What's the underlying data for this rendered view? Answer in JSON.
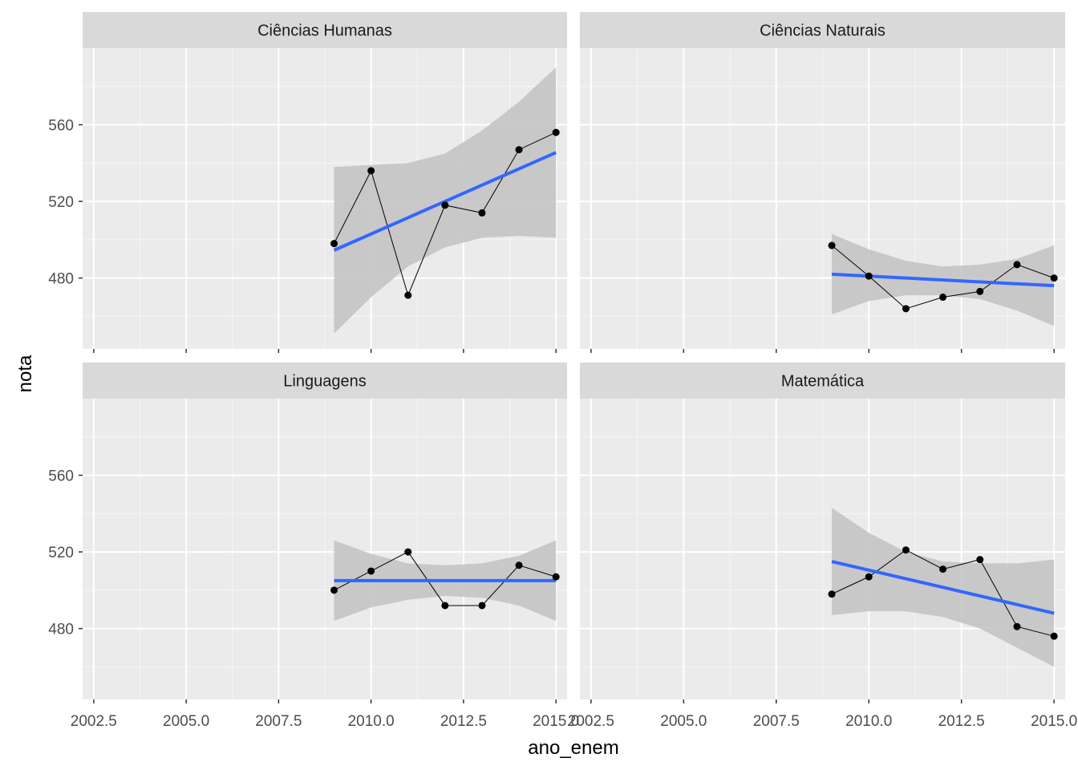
{
  "chart_data": {
    "type": "line",
    "layout": "facet_wrap 2x2",
    "xlabel": "ano_enem",
    "ylabel": "nota",
    "xlim": [
      2002.2,
      2015.3
    ],
    "ylim": [
      443,
      600
    ],
    "x_ticks": [
      2002.5,
      2005.0,
      2007.5,
      2010.0,
      2012.5,
      2015.0
    ],
    "x_tick_labels": [
      "2002.5",
      "2005.0",
      "2007.5",
      "2010.0",
      "2012.5",
      "2015.0"
    ],
    "y_ticks": [
      480,
      520,
      560
    ],
    "y_tick_labels": [
      "480",
      "520",
      "560"
    ],
    "grid": true,
    "colors": {
      "panel_bg": "#ebebeb",
      "strip_bg": "#d9d9d9",
      "grid": "#ffffff",
      "points_line": "#000000",
      "smooth_line": "#3366ff",
      "confidence_band": "#c4c4c4"
    },
    "panels": [
      {
        "title": "Ciências Humanas",
        "x": [
          2009,
          2010,
          2011,
          2012,
          2013,
          2014,
          2015
        ],
        "y": [
          498,
          536,
          471,
          518,
          514,
          547,
          556
        ],
        "fit": {
          "x": [
            2009,
            2015
          ],
          "y": [
            494.5,
            545.5
          ]
        },
        "band_upper": [
          538,
          539,
          540,
          545,
          557,
          572,
          590
        ],
        "band_lower": [
          451,
          470,
          486,
          496,
          501,
          502,
          501
        ]
      },
      {
        "title": "Ciências Naturais",
        "x": [
          2009,
          2010,
          2011,
          2012,
          2013,
          2014,
          2015
        ],
        "y": [
          497,
          481,
          464,
          470,
          473,
          487,
          480
        ],
        "fit": {
          "x": [
            2009,
            2015
          ],
          "y": [
            482,
            476
          ]
        },
        "band_upper": [
          503,
          495,
          489,
          486,
          487,
          490,
          497
        ],
        "band_lower": [
          461,
          468,
          471,
          471,
          469,
          463,
          455
        ]
      },
      {
        "title": "Linguagens",
        "x": [
          2009,
          2010,
          2011,
          2012,
          2013,
          2014,
          2015
        ],
        "y": [
          500,
          510,
          520,
          492,
          492,
          513,
          507
        ],
        "fit": {
          "x": [
            2009,
            2015
          ],
          "y": [
            505,
            505
          ]
        },
        "band_upper": [
          526,
          519,
          514,
          513,
          514,
          518,
          526
        ],
        "band_lower": [
          484,
          491,
          495,
          497,
          496,
          492,
          484
        ]
      },
      {
        "title": "Matemática",
        "x": [
          2009,
          2010,
          2011,
          2012,
          2013,
          2014,
          2015
        ],
        "y": [
          498,
          507,
          521,
          511,
          516,
          481,
          476
        ],
        "fit": {
          "x": [
            2009,
            2015
          ],
          "y": [
            515,
            488
          ]
        },
        "band_upper": [
          543,
          530,
          520,
          515,
          514,
          514,
          516
        ],
        "band_lower": [
          487,
          489,
          489,
          486,
          480,
          470,
          460
        ]
      }
    ]
  }
}
